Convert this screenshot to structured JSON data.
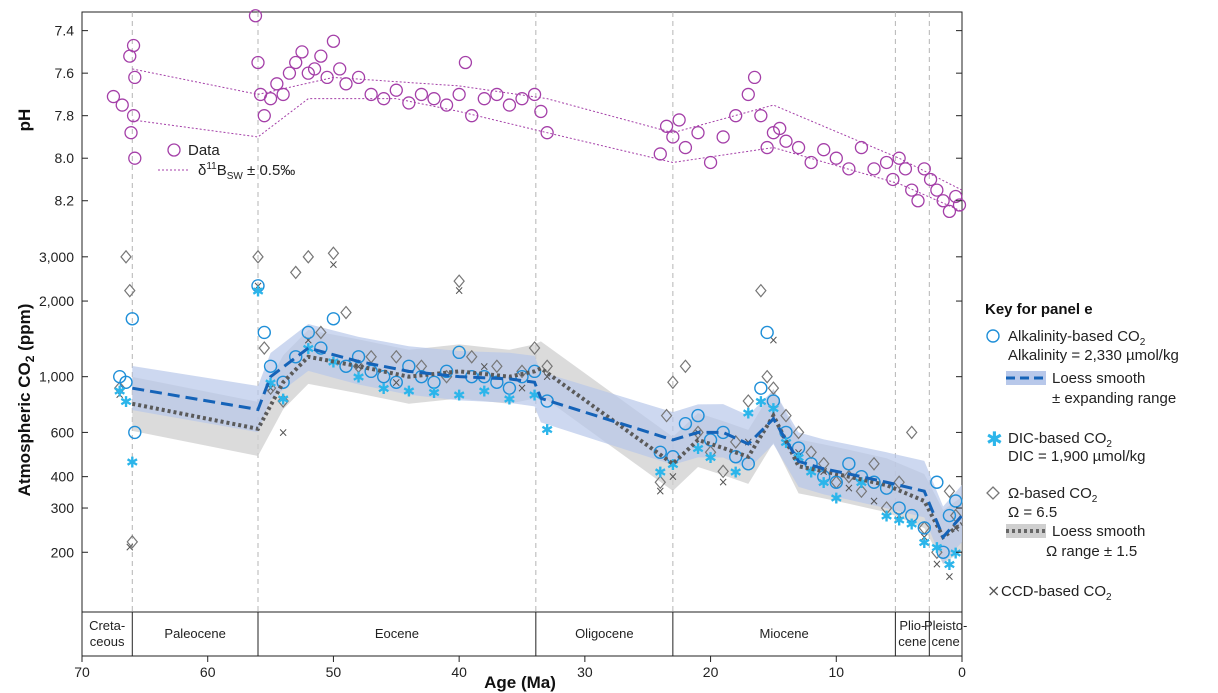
{
  "chart_data": [
    {
      "panel": "pH",
      "type": "scatter",
      "ylabel": "pH",
      "ylim": [
        7.35,
        8.3
      ],
      "y_inverted": true,
      "yticks": [
        "7.4",
        "7.6",
        "7.8",
        "8.0",
        "8.2"
      ],
      "legend": {
        "data_label": "Data",
        "band_label_main": "δ",
        "band_label_sup": "11",
        "band_label_B": "B",
        "band_label_sub": "SW",
        "band_label_rest": " ± 0.5‰"
      },
      "colors": {
        "data": "#a43fa8"
      },
      "series": [
        {
          "name": "Data",
          "x": [
            67.5,
            66.8,
            66.2,
            65.9,
            65.8,
            65.9,
            66.1,
            65.8,
            56.2,
            56.0,
            55.8,
            55.5,
            55.0,
            54.5,
            54.0,
            53.5,
            53.0,
            52.5,
            52.0,
            51.5,
            51.0,
            50.5,
            50.0,
            49.5,
            49.0,
            48.0,
            47.0,
            46.0,
            45.0,
            44.0,
            43.0,
            42.0,
            41.0,
            40.0,
            39.5,
            39.0,
            38.0,
            37.0,
            36.0,
            35.0,
            34.0,
            33.5,
            33.0,
            24.0,
            23.5,
            23.0,
            22.5,
            22.0,
            21.0,
            20.0,
            19.0,
            18.0,
            17.0,
            16.5,
            16.0,
            15.5,
            15.0,
            14.5,
            14.0,
            13.0,
            12.0,
            11.0,
            10.0,
            9.0,
            8.0,
            7.0,
            6.0,
            5.5,
            5.0,
            4.5,
            4.0,
            3.5,
            3.0,
            2.5,
            2.0,
            1.5,
            1.0,
            0.5,
            0.2
          ],
          "y": [
            7.71,
            7.75,
            7.52,
            7.47,
            7.62,
            7.8,
            7.88,
            8.0,
            7.33,
            7.55,
            7.7,
            7.8,
            7.72,
            7.65,
            7.7,
            7.6,
            7.55,
            7.5,
            7.6,
            7.58,
            7.52,
            7.62,
            7.45,
            7.58,
            7.65,
            7.62,
            7.7,
            7.72,
            7.68,
            7.74,
            7.7,
            7.72,
            7.75,
            7.7,
            7.55,
            7.8,
            7.72,
            7.7,
            7.75,
            7.72,
            7.7,
            7.78,
            7.88,
            7.98,
            7.85,
            7.9,
            7.82,
            7.95,
            7.88,
            8.02,
            7.9,
            7.8,
            7.7,
            7.62,
            7.8,
            7.95,
            7.88,
            7.86,
            7.92,
            7.95,
            8.02,
            7.96,
            8.0,
            8.05,
            7.95,
            8.05,
            8.02,
            8.1,
            8.0,
            8.05,
            8.15,
            8.2,
            8.05,
            8.1,
            8.15,
            8.2,
            8.25,
            8.18,
            8.22
          ]
        }
      ]
    },
    {
      "panel": "CO2",
      "type": "scatter",
      "ylabel": "Atmospheric CO",
      "ylabel_sub": "2",
      "ylabel_tail": " (ppm)",
      "scale": "log",
      "ylim": [
        120,
        3500
      ],
      "yticks": [
        "200",
        "300",
        "400",
        "600",
        "1,000",
        "2,000",
        "3,000"
      ],
      "colors": {
        "alkalinity": "#1f8fd8",
        "dic": "#2cb5ea",
        "omega": "#777777",
        "ccd": "#555555",
        "loess": "#1563b8",
        "band": "#b8c8ea",
        "gray_band": "#cfcfcf"
      },
      "series": [
        {
          "name": "Alkalinity-based CO2",
          "x": [
            67,
            66.5,
            66,
            65.8,
            56,
            55.5,
            55,
            54,
            53,
            52,
            51,
            50,
            49,
            48,
            47,
            46,
            45,
            44,
            43,
            42,
            41,
            40,
            39,
            38,
            37,
            36,
            35,
            34,
            33,
            24,
            23,
            22,
            21,
            20,
            19,
            18,
            17,
            16,
            15.5,
            15,
            14,
            13,
            12,
            11,
            10,
            9,
            8,
            7,
            6,
            5,
            4,
            3,
            2,
            1.5,
            1,
            0.5
          ],
          "y": [
            1000,
            950,
            1700,
            600,
            2300,
            1500,
            1100,
            950,
            1200,
            1500,
            1300,
            1700,
            1100,
            1200,
            1050,
            1000,
            950,
            1100,
            1000,
            950,
            1050,
            1250,
            1000,
            1000,
            950,
            900,
            1000,
            1050,
            800,
            500,
            480,
            650,
            700,
            560,
            600,
            480,
            450,
            900,
            1500,
            800,
            600,
            520,
            450,
            400,
            380,
            450,
            400,
            380,
            360,
            300,
            280,
            250,
            380,
            200,
            280,
            320
          ]
        },
        {
          "name": "DIC-based CO2",
          "x": [
            67,
            66.5,
            66,
            56,
            55,
            54,
            52,
            50,
            48,
            46,
            44,
            42,
            40,
            38,
            36,
            34,
            33,
            24,
            23,
            21,
            20,
            18,
            17,
            16,
            15,
            14,
            13,
            12,
            11,
            10,
            8,
            6,
            5,
            4,
            3,
            2,
            1,
            0.5
          ],
          "y": [
            880,
            800,
            460,
            2200,
            950,
            820,
            1300,
            1150,
            1000,
            900,
            880,
            870,
            850,
            880,
            820,
            850,
            620,
            420,
            450,
            520,
            480,
            420,
            720,
            800,
            750,
            550,
            480,
            420,
            380,
            330,
            380,
            280,
            270,
            260,
            220,
            210,
            180,
            200
          ]
        },
        {
          "name": "Ω-based CO2",
          "x": [
            67,
            66.5,
            66.2,
            66,
            56,
            55.5,
            55,
            54,
            53,
            52,
            51,
            50,
            49,
            48,
            47,
            45,
            43,
            41,
            40,
            39,
            37,
            35,
            34,
            33,
            24,
            23.5,
            23,
            22,
            21,
            20,
            19,
            18,
            17,
            16,
            15.5,
            15,
            14,
            13,
            12,
            11,
            10,
            9,
            8,
            7,
            6,
            5,
            4,
            3,
            2,
            1,
            0.5
          ],
          "y": [
            900,
            3000,
            2200,
            220,
            3000,
            1300,
            900,
            800,
            2600,
            3000,
            1500,
            3100,
            1800,
            1100,
            1200,
            1200,
            1100,
            1000,
            2400,
            1200,
            1100,
            1050,
            1300,
            1100,
            380,
            700,
            950,
            1100,
            600,
            500,
            420,
            550,
            800,
            2200,
            1000,
            900,
            700,
            600,
            500,
            450,
            380,
            400,
            350,
            450,
            300,
            380,
            600,
            250,
            200,
            350,
            280
          ]
        },
        {
          "name": "CCD-based CO2",
          "x": [
            67,
            66.2,
            56,
            55,
            54,
            52,
            50,
            48,
            45,
            40,
            38,
            35,
            33,
            24,
            23,
            21,
            19,
            17,
            15,
            13,
            11,
            9,
            7,
            5,
            3,
            2,
            1,
            0.5
          ],
          "y": [
            850,
            210,
            2300,
            900,
            600,
            1400,
            2800,
            1100,
            950,
            2200,
            1100,
            900,
            1000,
            350,
            400,
            600,
            380,
            550,
            1400,
            500,
            420,
            360,
            320,
            280,
            230,
            180,
            160,
            250
          ]
        }
      ],
      "loess_blue": {
        "x": [
          66,
          56,
          55,
          52,
          48,
          44,
          40,
          36,
          34,
          33.5,
          23,
          21,
          19,
          17,
          15,
          13,
          11,
          9,
          6,
          3,
          1.5,
          0
        ],
        "y": [
          900,
          740,
          1000,
          1300,
          1150,
          1050,
          1000,
          980,
          950,
          820,
          560,
          600,
          600,
          540,
          680,
          460,
          430,
          410,
          380,
          350,
          230,
          280
        ]
      },
      "loess_gray": {
        "x": [
          66,
          56,
          54,
          52,
          48,
          44,
          40,
          36,
          34,
          33.5,
          23,
          21,
          19,
          17,
          15,
          13,
          11,
          9,
          6,
          3,
          1.5,
          0
        ],
        "y": [
          780,
          620,
          950,
          1200,
          1100,
          1000,
          1050,
          1000,
          1050,
          1080,
          450,
          560,
          520,
          480,
          700,
          440,
          420,
          400,
          370,
          320,
          230,
          260
        ]
      }
    }
  ],
  "x_axis": {
    "title": "Age (Ma)",
    "ticks": [
      "70",
      "60",
      "50",
      "40",
      "30",
      "20",
      "10",
      "0"
    ]
  },
  "epochs": [
    {
      "line1": "Creta-",
      "line2": "ceous"
    },
    {
      "line1": "Paleocene",
      "line2": ""
    },
    {
      "line1": "Eocene",
      "line2": ""
    },
    {
      "line1": "Oligocene",
      "line2": ""
    },
    {
      "line1": "Miocene",
      "line2": ""
    },
    {
      "line1": "Plio-",
      "line2": "cene"
    },
    {
      "line1": "Pleisto-",
      "line2": "cene"
    }
  ],
  "key": {
    "heading": "Key for panel e",
    "alk_a": "Alkalinity-based CO",
    "alk_b": "2",
    "alk_sub": "Alkalinity = 2,330 µmol/kg",
    "loess1": "Loess smooth",
    "loess2": "± expanding range",
    "dic_a": "DIC-based CO",
    "dic_b": "2",
    "dic_sub": "DIC = 1,900 µmol/kg",
    "om_a": "Ω-based CO",
    "om_b": "2",
    "om_sub": "Ω = 6.5",
    "oloess1": "Loess smooth",
    "oloess2": "Ω range  ± 1.5",
    "ccd_a": "CCD-based CO",
    "ccd_b": "2"
  }
}
